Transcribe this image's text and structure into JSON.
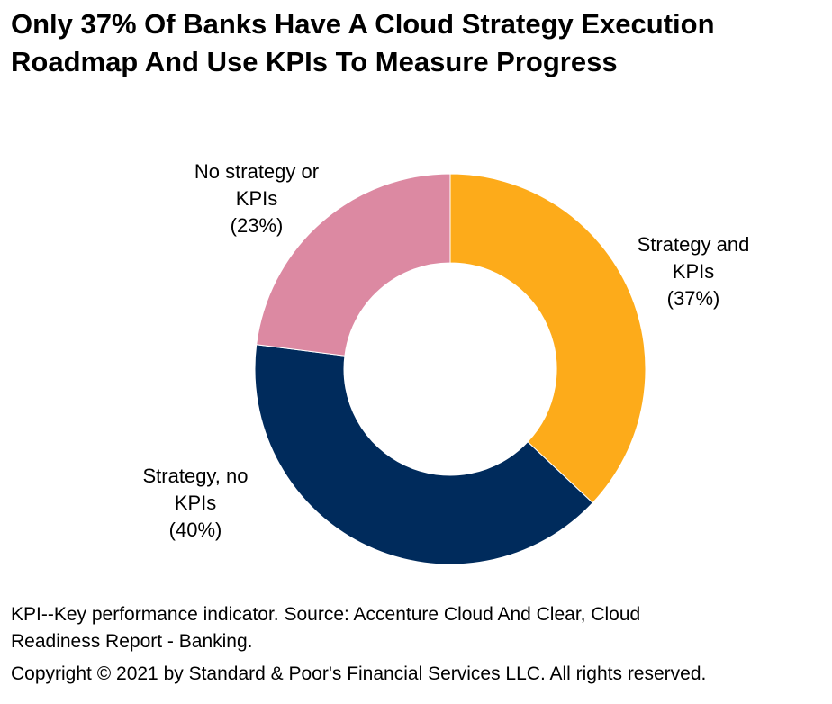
{
  "title": {
    "line1": "Only 37% Of Banks Have A Cloud Strategy Execution",
    "line2": "Roadmap And Use KPIs To Measure Progress"
  },
  "chart_data": {
    "type": "pie",
    "variant": "donut",
    "title": "Only 37% Of Banks Have A Cloud Strategy Execution Roadmap And Use KPIs To Measure Progress",
    "unit": "%",
    "start": "12 o'clock",
    "direction": "clockwise",
    "slices": [
      {
        "label_lines": [
          "Strategy and",
          "KPIs",
          "(37%)"
        ],
        "name": "Strategy and KPIs",
        "value": 37,
        "color": "#FDAB1A"
      },
      {
        "label_lines": [
          "Strategy, no",
          "KPIs",
          "(40%)"
        ],
        "name": "Strategy, no KPIs",
        "value": 40,
        "color": "#002B5C"
      },
      {
        "label_lines": [
          "No strategy or",
          "KPIs",
          "(23%)"
        ],
        "name": "No strategy or KPIs",
        "value": 23,
        "color": "#DC89A2"
      }
    ]
  },
  "footnotes": {
    "line1": "KPI--Key performance indicator. Source: Accenture Cloud And Clear, Cloud",
    "line2": "Readiness Report - Banking.",
    "copyright": "Copyright © 2021 by Standard & Poor's Financial Services LLC. All rights reserved."
  }
}
